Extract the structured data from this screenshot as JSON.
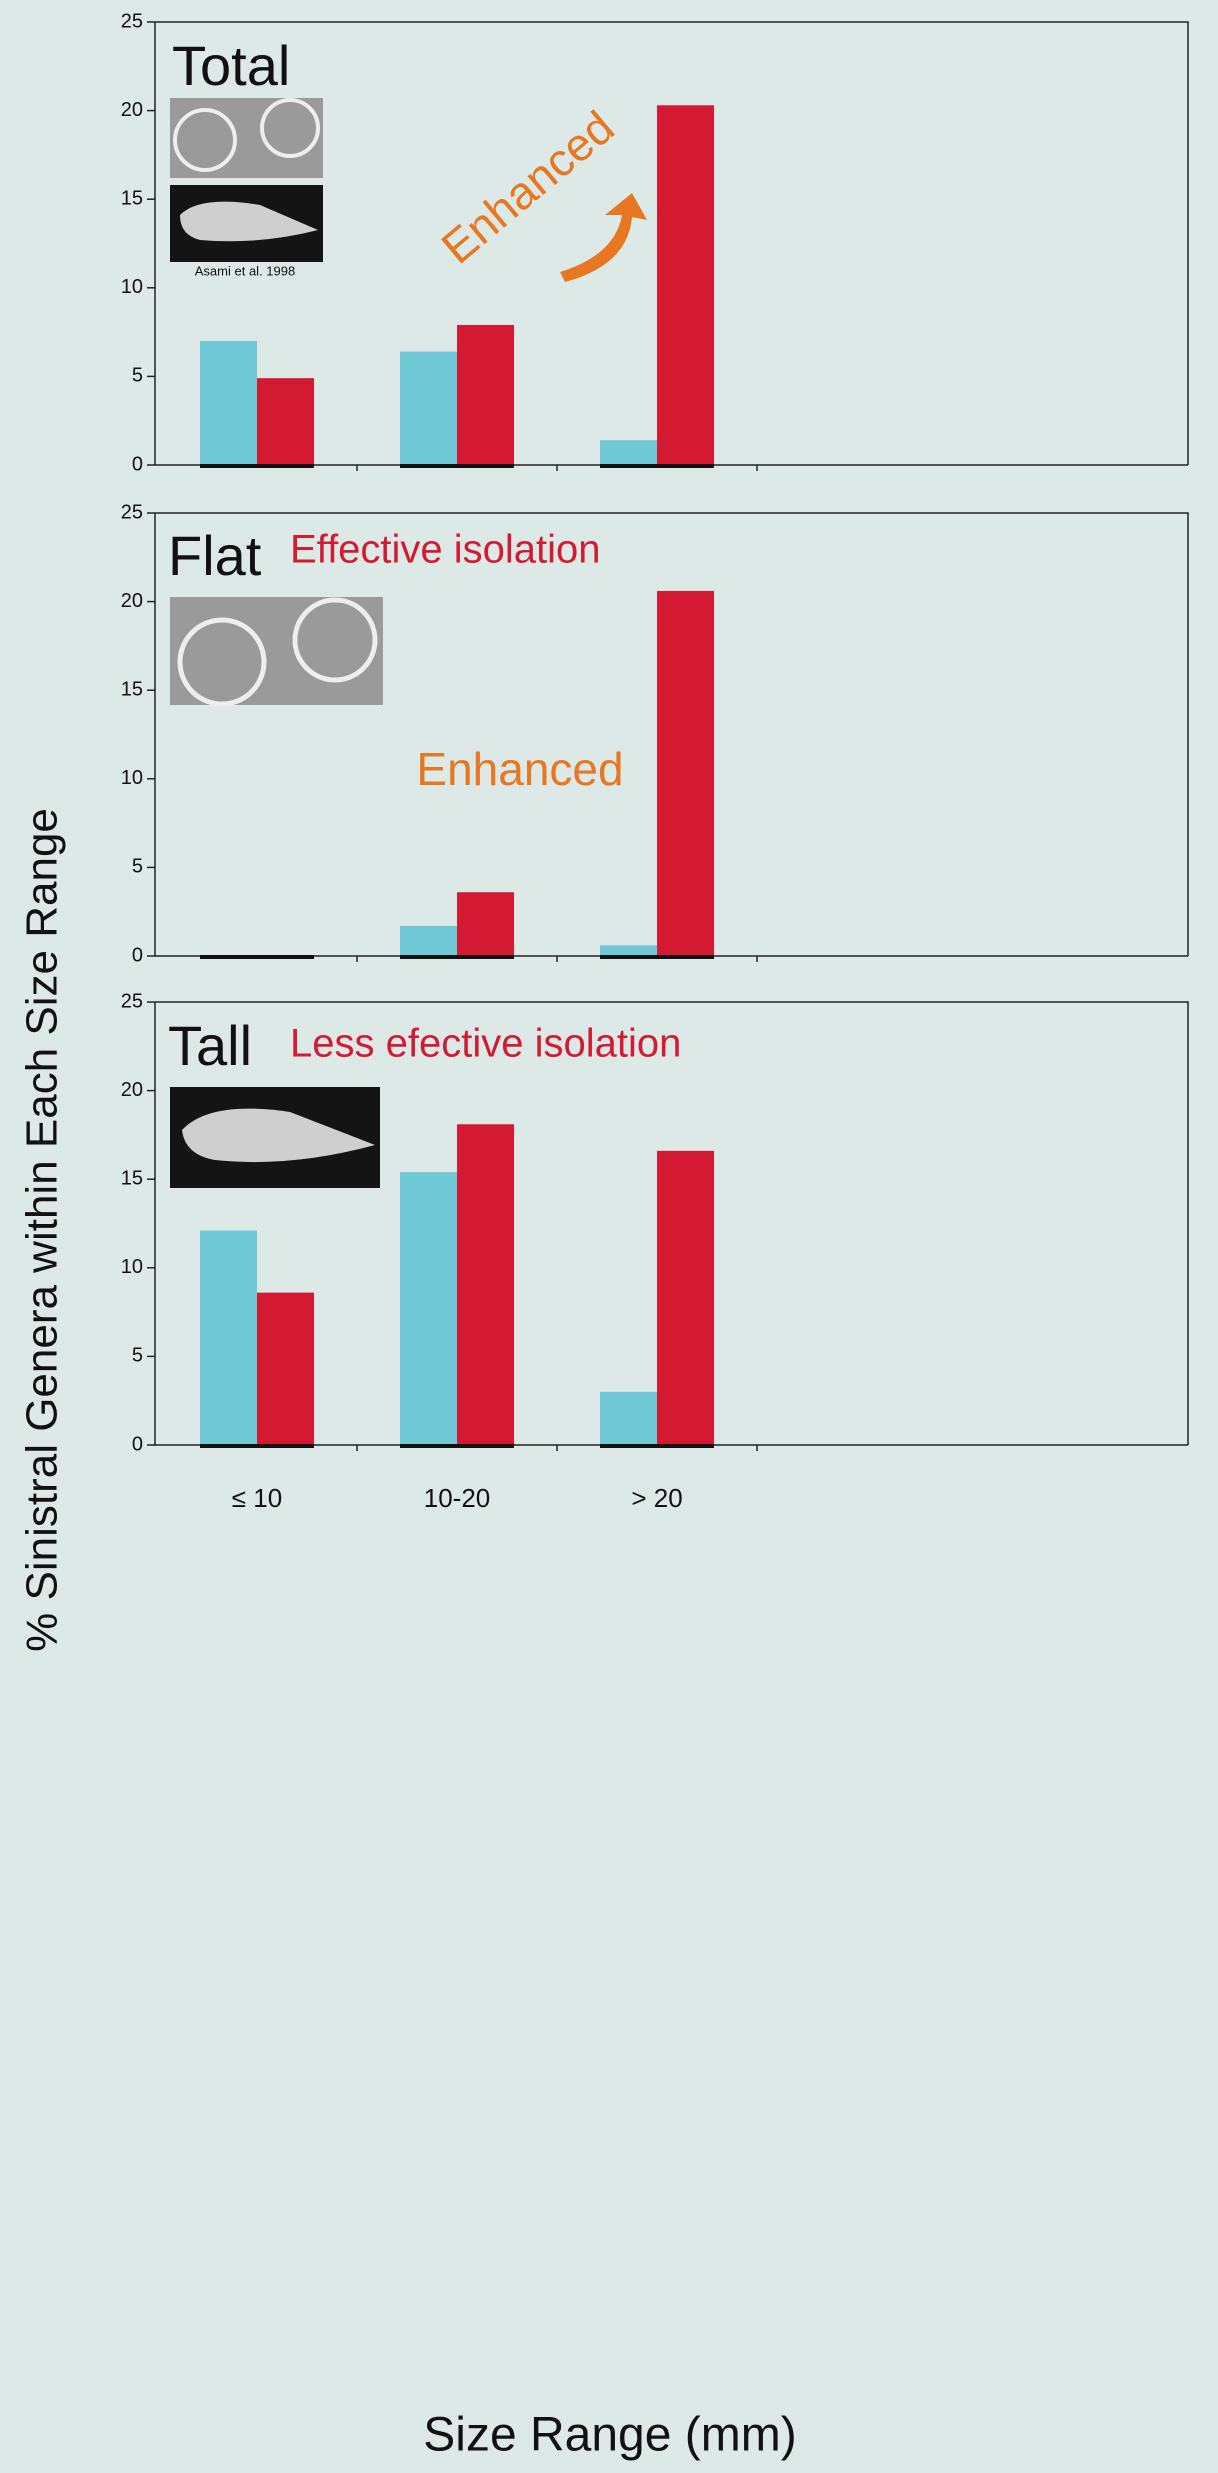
{
  "axis_labels": {
    "y": "% Sinistral Genera within Each Size Range",
    "x": "Size Range (mm)"
  },
  "chart_data": [
    {
      "type": "bar",
      "title": "Total",
      "credit": "Asami et al. 1998",
      "annotation": "Enhanced",
      "categories": [
        null,
        null,
        null
      ],
      "series": [
        {
          "color": "#6ec8d6",
          "values": [
            7,
            6.4,
            1.4
          ]
        },
        {
          "color": "#d41a33",
          "values": [
            4.9,
            7.9,
            20.3
          ]
        }
      ],
      "ylim": [
        0,
        25
      ],
      "yticks": [
        0,
        5,
        10,
        15,
        20,
        25
      ],
      "grid": false
    },
    {
      "type": "bar",
      "title": "Flat",
      "subtitle": "Effective isolation",
      "annotation": "Enhanced",
      "categories": [
        null,
        null,
        null
      ],
      "series": [
        {
          "color": "#6ec8d6",
          "values": [
            0,
            1.7,
            0.6
          ]
        },
        {
          "color": "#d41a33",
          "values": [
            0,
            3.6,
            20.6
          ]
        }
      ],
      "ylim": [
        0,
        25
      ],
      "yticks": [
        0,
        5,
        10,
        15,
        20,
        25
      ],
      "grid": false
    },
    {
      "type": "bar",
      "title": "Tall",
      "subtitle": "Less efective isolation",
      "categories": [
        "≤ 10",
        "10-20",
        "> 20"
      ],
      "series": [
        {
          "color": "#6ec8d6",
          "values": [
            12.1,
            15.4,
            3.0
          ]
        },
        {
          "color": "#d41a33",
          "values": [
            8.6,
            18.1,
            16.6
          ]
        }
      ],
      "ylim": [
        0,
        25
      ],
      "yticks": [
        0,
        5,
        10,
        15,
        20,
        25
      ],
      "grid": false
    }
  ]
}
